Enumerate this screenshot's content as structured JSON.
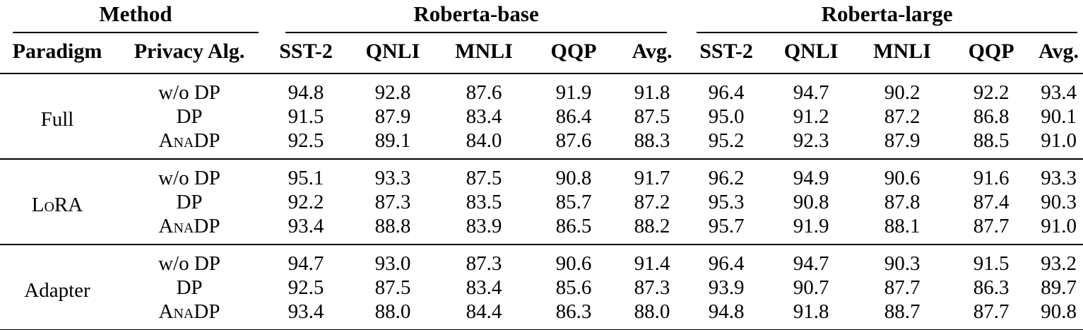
{
  "colors": {
    "background": "#ffffff",
    "text": "#000000",
    "rule": "#000000"
  },
  "table": {
    "top_headers": [
      {
        "label": "Method",
        "colspan": 2
      },
      {
        "label": "Roberta-base",
        "colspan": 5
      },
      {
        "label": "Roberta-large",
        "colspan": 5
      }
    ],
    "col_headers": [
      "Paradigm",
      "Privacy Alg.",
      "SST-2",
      "QNLI",
      "MNLI",
      "QQP",
      "Avg.",
      "SST-2",
      "QNLI",
      "MNLI",
      "QQP",
      "Avg."
    ],
    "groups": [
      {
        "paradigm": "Full",
        "paradigm_smallcaps": false,
        "rows": [
          {
            "alg": "w/o DP",
            "smallcaps": false,
            "values": [
              "94.8",
              "92.8",
              "87.6",
              "91.9",
              "91.8",
              "96.4",
              "94.7",
              "90.2",
              "92.2",
              "93.4"
            ]
          },
          {
            "alg": "DP",
            "smallcaps": false,
            "values": [
              "91.5",
              "87.9",
              "83.4",
              "86.4",
              "87.5",
              "95.0",
              "91.2",
              "87.2",
              "86.8",
              "90.1"
            ]
          },
          {
            "alg": "AnaDP",
            "smallcaps": true,
            "values": [
              "92.5",
              "89.1",
              "84.0",
              "87.6",
              "88.3",
              "95.2",
              "92.3",
              "87.9",
              "88.5",
              "91.0"
            ]
          }
        ]
      },
      {
        "paradigm": "LoRA",
        "paradigm_smallcaps": true,
        "rows": [
          {
            "alg": "w/o DP",
            "smallcaps": false,
            "values": [
              "95.1",
              "93.3",
              "87.5",
              "90.8",
              "91.7",
              "96.2",
              "94.9",
              "90.6",
              "91.6",
              "93.3"
            ]
          },
          {
            "alg": "DP",
            "smallcaps": false,
            "values": [
              "92.2",
              "87.3",
              "83.5",
              "85.7",
              "87.2",
              "95.3",
              "90.8",
              "87.8",
              "87.4",
              "90.3"
            ]
          },
          {
            "alg": "AnaDP",
            "smallcaps": true,
            "values": [
              "93.4",
              "88.8",
              "83.9",
              "86.5",
              "88.2",
              "95.7",
              "91.9",
              "88.1",
              "87.7",
              "91.0"
            ]
          }
        ]
      },
      {
        "paradigm": "Adapter",
        "paradigm_smallcaps": false,
        "rows": [
          {
            "alg": "w/o DP",
            "smallcaps": false,
            "values": [
              "94.7",
              "93.0",
              "87.3",
              "90.6",
              "91.4",
              "96.4",
              "94.7",
              "90.3",
              "91.5",
              "93.2"
            ]
          },
          {
            "alg": "DP",
            "smallcaps": false,
            "values": [
              "92.5",
              "87.5",
              "83.4",
              "85.6",
              "87.3",
              "93.9",
              "90.7",
              "87.7",
              "86.3",
              "89.7"
            ]
          },
          {
            "alg": "AnaDP",
            "smallcaps": true,
            "values": [
              "93.4",
              "88.0",
              "84.4",
              "86.3",
              "88.0",
              "94.8",
              "91.8",
              "88.7",
              "87.7",
              "90.8"
            ]
          }
        ]
      }
    ]
  }
}
